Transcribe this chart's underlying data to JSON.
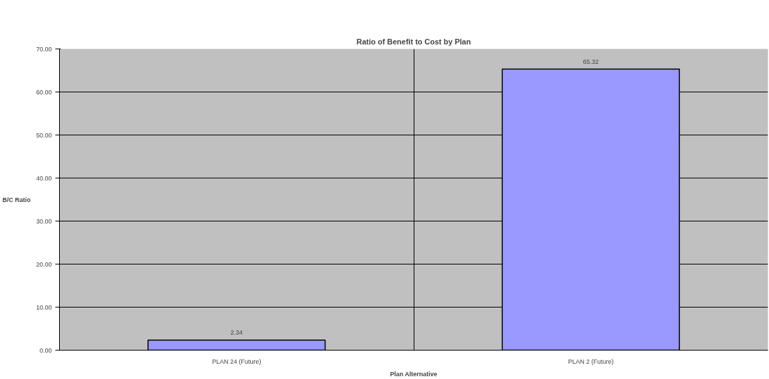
{
  "chart_data": {
    "type": "bar",
    "title": "Ratio of Benefit to Cost by Plan",
    "xlabel": "Plan Alternative",
    "ylabel": "B/C Ratio",
    "categories": [
      "PLAN 24 (Future)",
      "PLAN 2 (Future)"
    ],
    "values": [
      2.34,
      65.32
    ],
    "color": "#9999ff",
    "data_labels": true,
    "ylim": [
      0,
      70
    ],
    "yticks": [
      {
        "value": 0,
        "label": "0.00"
      },
      {
        "value": 10,
        "label": "10.00"
      },
      {
        "value": 20,
        "label": "20.00"
      },
      {
        "value": 30,
        "label": "30.00"
      },
      {
        "value": 40,
        "label": "40.00"
      },
      {
        "value": 50,
        "label": "50.00"
      },
      {
        "value": 60,
        "label": "60.00"
      },
      {
        "value": 70,
        "label": "70.00"
      }
    ],
    "grid": true
  }
}
